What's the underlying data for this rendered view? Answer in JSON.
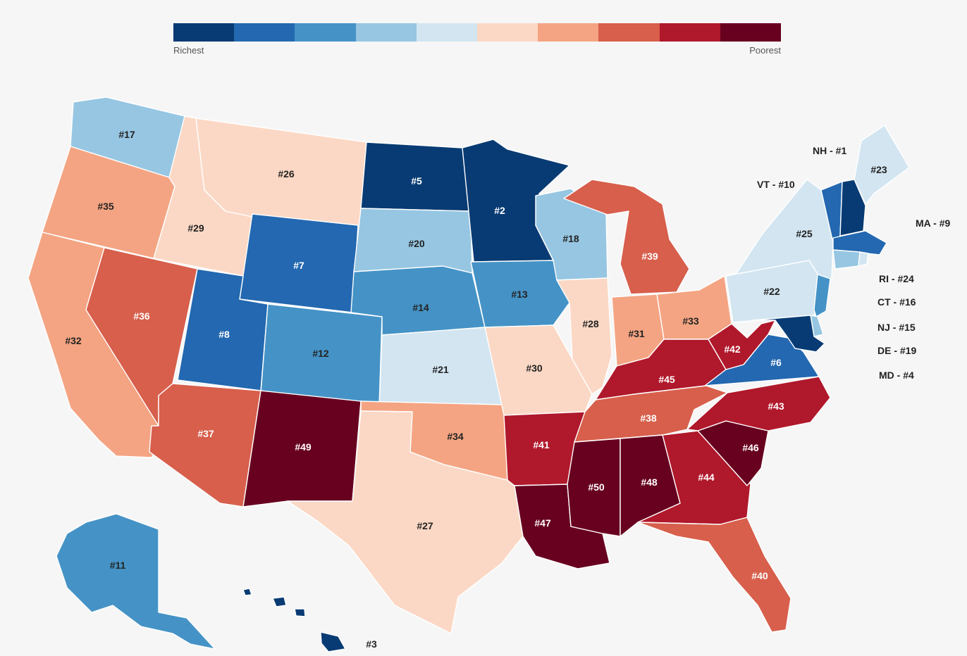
{
  "legend": {
    "low_label": "Richest",
    "high_label": "Poorest",
    "colors": [
      "#083b73",
      "#2368b0",
      "#4593c6",
      "#96c6e2",
      "#d2e5f1",
      "#fbd8c5",
      "#f4a482",
      "#d75f4c",
      "#b0182b",
      "#68001f"
    ]
  },
  "states": [
    {
      "abbr": "WA",
      "rank": 17
    },
    {
      "abbr": "OR",
      "rank": 35
    },
    {
      "abbr": "CA",
      "rank": 32
    },
    {
      "abbr": "ID",
      "rank": 29
    },
    {
      "abbr": "NV",
      "rank": 36
    },
    {
      "abbr": "MT",
      "rank": 26
    },
    {
      "abbr": "WY",
      "rank": 7
    },
    {
      "abbr": "UT",
      "rank": 8
    },
    {
      "abbr": "AZ",
      "rank": 37
    },
    {
      "abbr": "CO",
      "rank": 12
    },
    {
      "abbr": "NM",
      "rank": 49
    },
    {
      "abbr": "ND",
      "rank": 5
    },
    {
      "abbr": "SD",
      "rank": 20
    },
    {
      "abbr": "NE",
      "rank": 14
    },
    {
      "abbr": "KS",
      "rank": 21
    },
    {
      "abbr": "OK",
      "rank": 34
    },
    {
      "abbr": "TX",
      "rank": 27
    },
    {
      "abbr": "MN",
      "rank": 2
    },
    {
      "abbr": "IA",
      "rank": 13
    },
    {
      "abbr": "MO",
      "rank": 30
    },
    {
      "abbr": "AR",
      "rank": 41
    },
    {
      "abbr": "LA",
      "rank": 47
    },
    {
      "abbr": "WI",
      "rank": 18
    },
    {
      "abbr": "IL",
      "rank": 28
    },
    {
      "abbr": "MI",
      "rank": 39
    },
    {
      "abbr": "IN",
      "rank": 31
    },
    {
      "abbr": "OH",
      "rank": 33
    },
    {
      "abbr": "KY",
      "rank": 45
    },
    {
      "abbr": "TN",
      "rank": 38
    },
    {
      "abbr": "MS",
      "rank": 50
    },
    {
      "abbr": "AL",
      "rank": 48
    },
    {
      "abbr": "GA",
      "rank": 44
    },
    {
      "abbr": "FL",
      "rank": 40
    },
    {
      "abbr": "SC",
      "rank": 46
    },
    {
      "abbr": "NC",
      "rank": 43
    },
    {
      "abbr": "VA",
      "rank": 6
    },
    {
      "abbr": "WV",
      "rank": 42
    },
    {
      "abbr": "PA",
      "rank": 22
    },
    {
      "abbr": "NY",
      "rank": 25
    },
    {
      "abbr": "ME",
      "rank": 23
    },
    {
      "abbr": "AK",
      "rank": 11
    },
    {
      "abbr": "HI",
      "rank": 3
    },
    {
      "abbr": "NH",
      "rank": 1
    },
    {
      "abbr": "VT",
      "rank": 10
    },
    {
      "abbr": "MA",
      "rank": 9
    },
    {
      "abbr": "RI",
      "rank": 24
    },
    {
      "abbr": "CT",
      "rank": 16
    },
    {
      "abbr": "NJ",
      "rank": 15
    },
    {
      "abbr": "DE",
      "rank": 19
    },
    {
      "abbr": "MD",
      "rank": 4
    }
  ],
  "labels": {
    "WA": "#17",
    "OR": "#35",
    "CA": "#32",
    "ID": "#29",
    "NV": "#36",
    "MT": "#26",
    "WY": "#7",
    "UT": "#8",
    "AZ": "#37",
    "CO": "#12",
    "NM": "#49",
    "ND": "#5",
    "SD": "#20",
    "NE": "#14",
    "KS": "#21",
    "OK": "#34",
    "TX": "#27",
    "MN": "#2",
    "IA": "#13",
    "MO": "#30",
    "AR": "#41",
    "LA": "#47",
    "WI": "#18",
    "IL": "#28",
    "MI": "#39",
    "IN": "#31",
    "OH": "#33",
    "KY": "#45",
    "TN": "#38",
    "MS": "#50",
    "AL": "#48",
    "GA": "#44",
    "FL": "#40",
    "SC": "#46",
    "NC": "#43",
    "VA": "#6",
    "WV": "#42",
    "PA": "#22",
    "NY": "#25",
    "ME": "#23",
    "AK": "#11",
    "HI": "#3"
  },
  "side_labels": {
    "NH": "NH - #1",
    "VT": "VT - #10",
    "MA": "MA - #9",
    "RI": "RI - #24",
    "CT": "CT - #16",
    "NJ": "NJ - #15",
    "DE": "DE - #19",
    "MD": "MD - #4"
  }
}
